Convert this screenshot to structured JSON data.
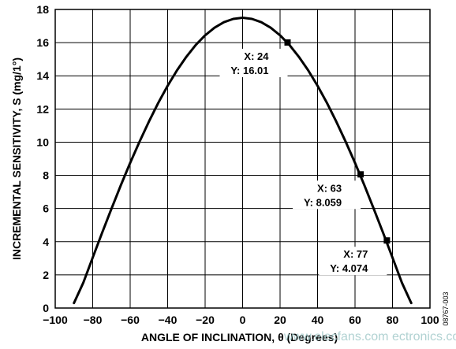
{
  "chart_data": {
    "type": "line",
    "title": "",
    "xlabel": "ANGLE OF INCLINATION, θ (Degrees)",
    "ylabel": "INCREMENTAL SENSITIVITY, S (mg/1°)",
    "xlim": [
      -100,
      100
    ],
    "ylim": [
      0,
      18
    ],
    "xticks": [
      -100,
      -80,
      -60,
      -40,
      -20,
      0,
      20,
      40,
      60,
      80,
      100
    ],
    "yticks": [
      0,
      2,
      4,
      6,
      8,
      10,
      12,
      14,
      16,
      18
    ],
    "xtick_labels": [
      "−100",
      "−80",
      "−60",
      "−40",
      "−20",
      "0",
      "20",
      "40",
      "60",
      "80",
      "100"
    ],
    "ytick_labels": [
      "0",
      "2",
      "4",
      "6",
      "8",
      "10",
      "12",
      "14",
      "16",
      "18"
    ],
    "grid": true,
    "series": [
      {
        "x": [
          -90,
          -85,
          -80,
          -75,
          -70,
          -65,
          -60,
          -55,
          -50,
          -45,
          -40,
          -35,
          -30,
          -25,
          -20,
          -15,
          -10,
          -5,
          0,
          5,
          10,
          15,
          20,
          25,
          30,
          35,
          40,
          45,
          50,
          55,
          60,
          65,
          70,
          75,
          80,
          85,
          90
        ],
        "y": [
          0.3,
          1.53,
          3.04,
          4.53,
          5.98,
          7.4,
          8.75,
          10.03,
          11.24,
          12.37,
          13.4,
          14.33,
          15.15,
          15.86,
          16.44,
          16.9,
          17.23,
          17.43,
          17.5,
          17.43,
          17.23,
          16.9,
          16.44,
          15.86,
          15.15,
          14.33,
          13.4,
          12.37,
          11.24,
          10.03,
          8.75,
          7.4,
          5.98,
          4.53,
          3.04,
          1.53,
          0.3
        ]
      }
    ],
    "annotations": [
      {
        "x": 24,
        "y": 16.01,
        "label_x": "X: 24",
        "label_y": "Y: 16.01"
      },
      {
        "x": 63,
        "y": 8.059,
        "label_x": "X: 63",
        "label_y": "Y: 8.059"
      },
      {
        "x": 77,
        "y": 4.074,
        "label_x": "X: 77",
        "label_y": "Y: 4.074"
      }
    ],
    "figure_code": "08767-003",
    "watermark": "www.elecfans.com ectronics.com"
  }
}
